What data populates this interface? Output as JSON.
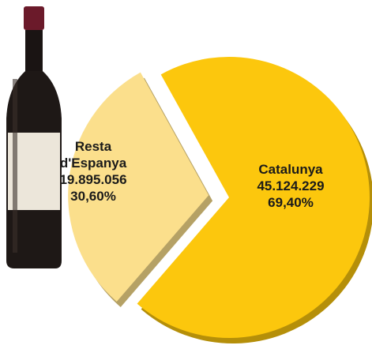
{
  "chart_data": {
    "type": "pie",
    "categories": [
      "Catalunya",
      "Resta d'Espanya"
    ],
    "values": [
      69.4,
      30.6
    ],
    "value_labels": [
      "69,40%",
      "30,60%"
    ],
    "counts": [
      45124229,
      19895056
    ],
    "count_labels": [
      "45.124.229",
      "19.895.056"
    ],
    "colors": [
      "#fcc70d",
      "#fbdf8c"
    ]
  }
}
